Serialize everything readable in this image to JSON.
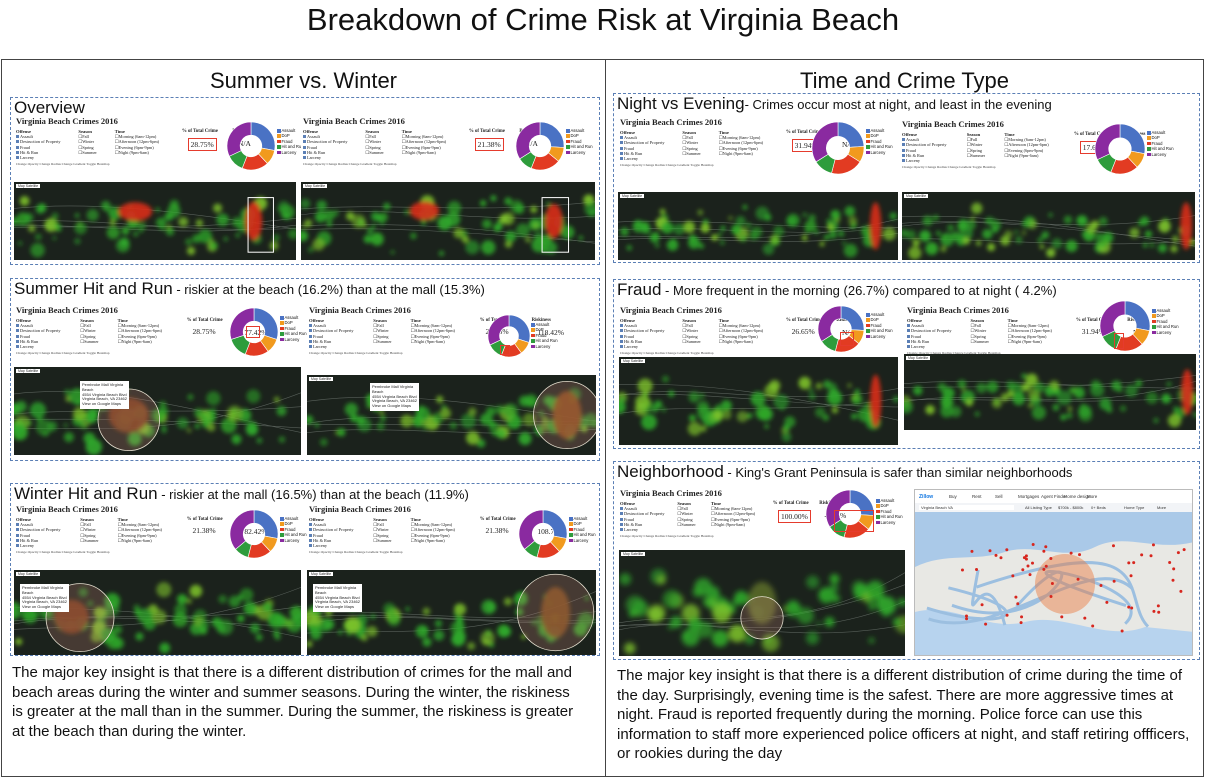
{
  "page": {
    "title": "Breakdown of Crime Risk at Virginia Beach"
  },
  "left": {
    "heading": "Summer vs. Winter",
    "overview": {
      "title": "Overview",
      "a": {
        "pct": "28.75%",
        "risk": "N/A"
      },
      "b": {
        "pct": "21.38%",
        "risk": "N/A"
      }
    },
    "summer": {
      "title": "Summer Hit and Run",
      "sub": " - riskier at the beach (16.2%) than at the mall (15.3%)",
      "a": {
        "pct": "28.75%",
        "risk": "77.42%"
      },
      "b": {
        "pct": "28.75%",
        "risk": "118.42%"
      }
    },
    "winter": {
      "title": "Winter Hit and Run",
      "sub": " - riskier at the mall (16.5%) than at the beach (11.9%)",
      "a": {
        "pct": "21.38%",
        "risk": "82.42%"
      },
      "b": {
        "pct": "21.38%",
        "risk": "108.78%"
      }
    },
    "insight": "The major key insight is that there is a different distribution of crimes for the mall and beach areas during the winter and summer seasons. During the winter, the riskiness is greater at the mall than in the summer. During the summer, the riskiness is greater at the beach than during the winter."
  },
  "right": {
    "heading": "Time and Crime Type",
    "night": {
      "title": "Night vs Evening",
      "sub": "- Crimes occur most at night, and least in the evening",
      "a": {
        "pct": "31.94%",
        "risk": "N/A"
      },
      "b": {
        "pct": "17.63%",
        "risk": "N/A"
      }
    },
    "fraud": {
      "title": "Fraud",
      "sub": " - More frequent in the morning (26.7%) compared to at night ( 4.2%)",
      "a": {
        "pct": "26.65%",
        "risk": "N/A"
      },
      "b": {
        "pct": "31.94%",
        "risk": "N/A"
      }
    },
    "neigh": {
      "title": "Neighborhood",
      "sub": " - King's Grant Peninsula is safer than similar neighborhoods",
      "a": {
        "pct": "100.00%",
        "risk": "-6.35%"
      }
    },
    "insight": "The major key insight is that there  is a different distribution of crime during the time of the day. Surprisingly, evening time is the safest. There are more aggressive times at night. Fraud is reported frequently during the morning. Police force can use this information to staff more experienced police officers at night, and staff retiring offficers, or rookies during the day"
  },
  "dashboard": {
    "title": "Virginia Beach Crimes 2016",
    "offense_label": "Offense",
    "season_label": "Season",
    "time_label": "Time",
    "pct_label": "% of Total Crime",
    "risk_label": "Riskiness",
    "offenses": [
      "Assault",
      "Destruction of Property",
      "Fraud",
      "Hit & Run",
      "Larceny"
    ],
    "seasons": [
      "Fall",
      "Winter",
      "Spring",
      "Summer"
    ],
    "times": [
      "Morning (6am-12pm)",
      "Afternoon (12pm-6pm)",
      "Evening (6pm-9pm)",
      "Night (9pm-6am)"
    ],
    "buttons": "Change Opacity   Change Radius   Change Gradient   Toggle Heatmap",
    "legend": [
      "Assault",
      "DoP",
      "Fraud",
      "Hit and Run",
      "Larceny"
    ],
    "map_btns": "Map  Satellite",
    "popup_mall": [
      "Pembroke Mall Virginia",
      "Beach",
      "4554 Virginia Beach Blvd",
      "Virginia Beach, VA 23462",
      "View on Google Maps"
    ],
    "popup_beach": [
      "Pembroke Mall Virginia",
      "Beach",
      "4554 Virginia Beach Blvd",
      "Virginia Beach, VA 23462",
      "View on Google Maps"
    ]
  },
  "zillow": {
    "brand": "Zillow",
    "nav": [
      "Buy",
      "Rent",
      "Sell",
      "Mortgages",
      "Agent Finder",
      "Home design",
      "More"
    ],
    "search": "Virginia Beach VA",
    "filters": [
      "All Listing Type",
      "$700k - $800k",
      "0+ Beds",
      "Home Type",
      "More"
    ]
  },
  "colors": {
    "assault": "#4a72c4",
    "dop": "#f19a1e",
    "fraud": "#e23b22",
    "hitrun": "#2e9c3c",
    "larceny": "#8a2aa0",
    "dash_border": "#5b7fb5",
    "highlight": "#e53b2d"
  }
}
